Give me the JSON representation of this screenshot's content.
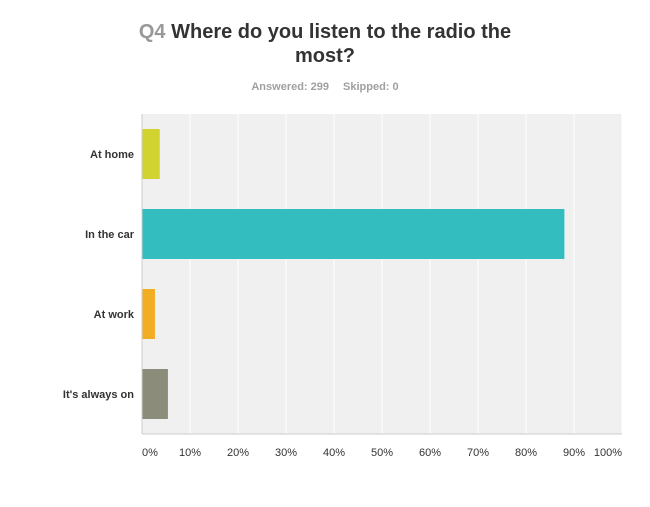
{
  "header": {
    "question_number": "Q4",
    "question_line1": "Where do you listen to the radio the",
    "question_line2": "most?",
    "answered_label": "Answered: 299",
    "skipped_label": "Skipped: 0"
  },
  "chart_data": {
    "type": "bar",
    "orientation": "horizontal",
    "title": "Where do you listen to the radio the most?",
    "categories": [
      "At home",
      "In the car",
      "At work",
      "It's always on"
    ],
    "values": [
      3.7,
      88.0,
      2.7,
      5.4
    ],
    "colors": [
      "#d1d430",
      "#34bdbf",
      "#f2ae22",
      "#8b8c7a"
    ],
    "x_ticks": [
      "0%",
      "10%",
      "20%",
      "30%",
      "40%",
      "50%",
      "60%",
      "70%",
      "80%",
      "90%",
      "100%"
    ],
    "xlim": [
      0,
      100
    ],
    "grid": true,
    "legend": "none",
    "plot_background": "#f0f0f0",
    "grid_color": "#ffffff"
  }
}
